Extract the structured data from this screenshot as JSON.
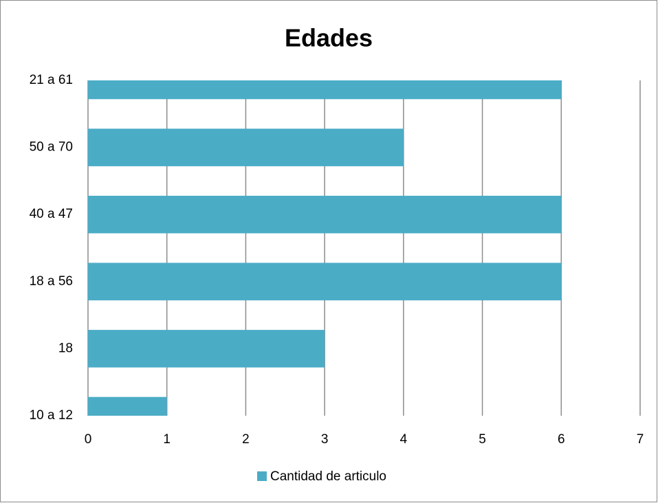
{
  "chart_data": {
    "type": "barh",
    "title": "Edades",
    "categories": [
      "10 a 12",
      "18",
      "18 a 56",
      "40 a 47",
      "50 a 70",
      "21 a 61"
    ],
    "series": [
      {
        "name": "Cantidad de articulo",
        "color": "#4bacc6",
        "values": [
          1,
          3,
          6,
          6,
          4,
          6
        ]
      }
    ],
    "xlim": [
      0,
      7
    ],
    "xticks": [
      0,
      1,
      2,
      3,
      4,
      5,
      6,
      7
    ],
    "grid": true,
    "legend": "bottom"
  }
}
